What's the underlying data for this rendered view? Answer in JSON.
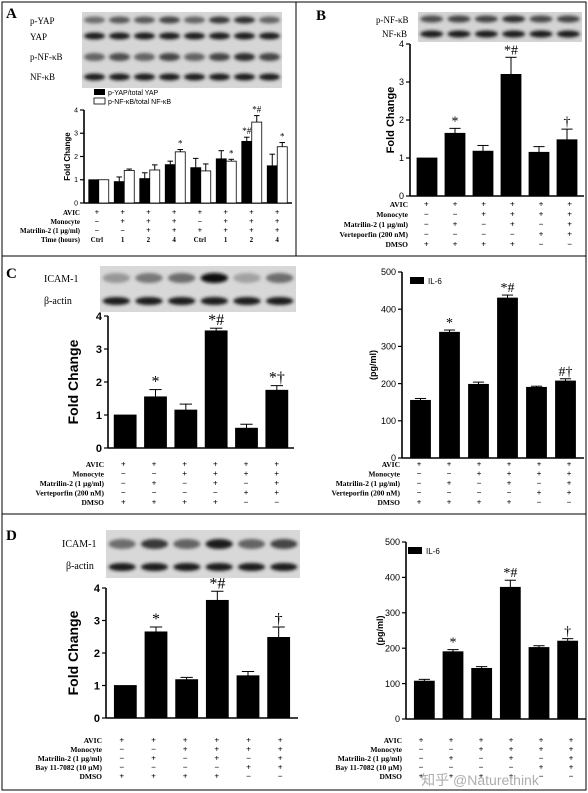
{
  "watermark": "知乎 @Naturethink",
  "panels": {
    "A": {
      "letter": "A",
      "blots": [
        "p-YAP",
        "YAP",
        "p-NF-κB",
        "NF-κB"
      ],
      "legend": [
        "p-YAP/total YAP",
        "p-NF-κB/total NF-κB"
      ],
      "ylabel": "Fold Change",
      "rows": [
        {
          "label": "AVIC",
          "signs": [
            "+",
            "+",
            "+",
            "+",
            "+",
            "+",
            "+",
            "+"
          ]
        },
        {
          "label": "Monocyte",
          "signs": [
            "−",
            "+",
            "+",
            "+",
            "−",
            "+",
            "+",
            "+"
          ]
        },
        {
          "label": "Matrilin-2 (1 µg/ml)",
          "signs": [
            "−",
            "−",
            "+",
            "+",
            "+",
            "+",
            "+",
            "+"
          ]
        },
        {
          "label": "Time (hours)",
          "signs": [
            "Ctrl",
            "1",
            "2",
            "4",
            "Ctrl",
            "1",
            "2",
            "4"
          ]
        }
      ]
    },
    "B": {
      "letter": "B",
      "blots": [
        "p-NF-κB",
        "NF-κB"
      ],
      "ylabel": "Fold Change",
      "rows": [
        {
          "label": "AVIC",
          "signs": [
            "+",
            "+",
            "+",
            "+",
            "+",
            "+"
          ]
        },
        {
          "label": "Monocyte",
          "signs": [
            "−",
            "−",
            "+",
            "+",
            "+",
            "+"
          ]
        },
        {
          "label": "Matrilin-2 (1 µg/ml)",
          "signs": [
            "−",
            "+",
            "−",
            "+",
            "−",
            "+"
          ]
        },
        {
          "label": "Verteporfin (200 nM)",
          "signs": [
            "−",
            "−",
            "−",
            "−",
            "+",
            "+"
          ]
        },
        {
          "label": "DMSO",
          "signs": [
            "+",
            "+",
            "+",
            "+",
            "−",
            "−"
          ]
        }
      ]
    },
    "C": {
      "letter": "C",
      "blots": [
        "ICAM-1",
        "β-actin"
      ],
      "ylabel": "Fold Change",
      "il6_ylabel": "(pg/ml)",
      "il6_legend": "IL-6",
      "rows": [
        {
          "label": "AVIC",
          "signs": [
            "+",
            "+",
            "+",
            "+",
            "+",
            "+"
          ]
        },
        {
          "label": "Monocyte",
          "signs": [
            "−",
            "−",
            "+",
            "+",
            "+",
            "+"
          ]
        },
        {
          "label": "Matrilin-2 (1 µg/ml)",
          "signs": [
            "−",
            "+",
            "−",
            "+",
            "−",
            "+"
          ]
        },
        {
          "label": "Verteporfin (200 nM)",
          "signs": [
            "−",
            "−",
            "−",
            "−",
            "+",
            "+"
          ]
        },
        {
          "label": "DMSO",
          "signs": [
            "+",
            "+",
            "+",
            "+",
            "−",
            "−"
          ]
        }
      ]
    },
    "D": {
      "letter": "D",
      "blots": [
        "ICAM-1",
        "β-actin"
      ],
      "ylabel": "Fold Change",
      "il6_ylabel": "(pg/ml)",
      "il6_legend": "IL-6",
      "rows": [
        {
          "label": "AVIC",
          "signs": [
            "+",
            "+",
            "+",
            "+",
            "+",
            "+"
          ]
        },
        {
          "label": "Monocyte",
          "signs": [
            "−",
            "−",
            "+",
            "+",
            "+",
            "+"
          ]
        },
        {
          "label": "Matrilin-2 (1 µg/ml)",
          "signs": [
            "−",
            "+",
            "−",
            "+",
            "−",
            "+"
          ]
        },
        {
          "label": "Bay 11-7082 (10 µM)",
          "signs": [
            "−",
            "−",
            "−",
            "−",
            "+",
            "+"
          ]
        },
        {
          "label": "DMSO",
          "signs": [
            "+",
            "+",
            "+",
            "+",
            "−",
            "−"
          ]
        }
      ]
    }
  },
  "chart_data": [
    {
      "id": "A",
      "type": "bar",
      "ylabel": "Fold Change",
      "ylim": [
        0,
        4
      ],
      "yticks": [
        0,
        1,
        2,
        3,
        4
      ],
      "groups": 8,
      "series": [
        {
          "name": "p-YAP/total YAP",
          "color": "#000000",
          "values": [
            1.0,
            0.92,
            1.05,
            1.65,
            1.52,
            1.9,
            2.65,
            1.6
          ],
          "errors": [
            0.0,
            0.2,
            0.25,
            0.15,
            0.4,
            0.35,
            0.18,
            0.5
          ],
          "marks": [
            "",
            "",
            "",
            "",
            "",
            "",
            "*#",
            ""
          ]
        },
        {
          "name": "p-NF-κB/total NF-κB",
          "color": "#ffffff",
          "values": [
            1.0,
            1.4,
            1.42,
            2.2,
            1.38,
            1.8,
            3.48,
            2.42
          ],
          "errors": [
            0.0,
            0.06,
            0.22,
            0.1,
            0.3,
            0.08,
            0.28,
            0.18
          ],
          "marks": [
            "",
            "",
            "",
            "*",
            "",
            "*",
            "*#",
            "*"
          ]
        }
      ]
    },
    {
      "id": "B",
      "type": "bar",
      "ylabel": "Fold Change",
      "ylim": [
        0,
        4
      ],
      "yticks": [
        0,
        1,
        2,
        3,
        4
      ],
      "values": [
        1.0,
        1.65,
        1.18,
        3.2,
        1.15,
        1.48
      ],
      "errors": [
        0.0,
        0.13,
        0.15,
        0.45,
        0.15,
        0.28
      ],
      "marks": [
        "",
        "*",
        "",
        "*#",
        "",
        "†"
      ]
    },
    {
      "id": "C-ICAM1",
      "type": "bar",
      "ylabel": "Fold Change",
      "ylim": [
        0,
        4
      ],
      "yticks": [
        0,
        1,
        2,
        3,
        4
      ],
      "values": [
        1.0,
        1.55,
        1.15,
        3.55,
        0.6,
        1.75
      ],
      "errors": [
        0.0,
        0.22,
        0.18,
        0.08,
        0.12,
        0.14
      ],
      "marks": [
        "",
        "*",
        "",
        "*#",
        "",
        "*†"
      ]
    },
    {
      "id": "C-IL6",
      "type": "bar",
      "title": "IL-6",
      "ylabel": "(pg/ml)",
      "ylim": [
        0,
        500
      ],
      "yticks": [
        0,
        100,
        200,
        300,
        400,
        500
      ],
      "values": [
        155,
        338,
        198,
        430,
        190,
        207
      ],
      "errors": [
        5,
        6,
        6,
        8,
        3,
        6
      ],
      "marks": [
        "",
        "*",
        "",
        "*#",
        "",
        "#†"
      ]
    },
    {
      "id": "D-ICAM1",
      "type": "bar",
      "ylabel": "Fold Change",
      "ylim": [
        0,
        4
      ],
      "yticks": [
        0,
        1,
        2,
        3,
        4
      ],
      "values": [
        1.0,
        2.65,
        1.18,
        3.62,
        1.3,
        2.48
      ],
      "errors": [
        0.0,
        0.15,
        0.07,
        0.28,
        0.13,
        0.32
      ],
      "marks": [
        "",
        "*",
        "",
        "*#",
        "",
        "†"
      ]
    },
    {
      "id": "D-IL6",
      "type": "bar",
      "title": "IL-6",
      "ylabel": "(pg/ml)",
      "ylim": [
        0,
        500
      ],
      "yticks": [
        0,
        100,
        200,
        300,
        400,
        500
      ],
      "values": [
        107,
        190,
        143,
        372,
        202,
        220
      ],
      "errors": [
        5,
        6,
        5,
        20,
        5,
        7
      ],
      "marks": [
        "",
        "*",
        "",
        "*#",
        "",
        "†"
      ]
    }
  ]
}
